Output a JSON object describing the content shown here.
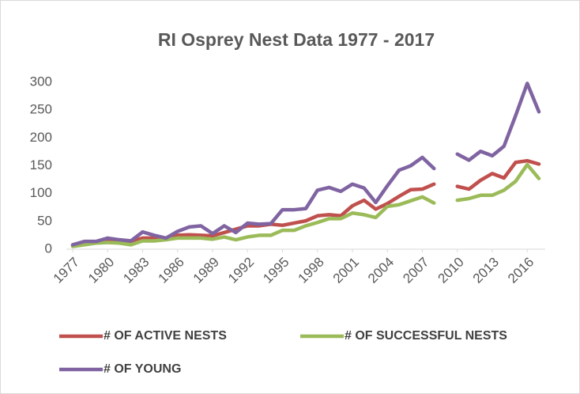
{
  "chart_data": {
    "type": "line",
    "title": "RI Osprey Nest Data 1977 - 2017",
    "x": [
      1977,
      1978,
      1979,
      1980,
      1981,
      1982,
      1983,
      1984,
      1985,
      1986,
      1987,
      1988,
      1989,
      1990,
      1991,
      1992,
      1993,
      1994,
      1995,
      1996,
      1997,
      1998,
      1999,
      2000,
      2001,
      2002,
      2003,
      2004,
      2005,
      2006,
      2007,
      2008,
      2009,
      2010,
      2011,
      2012,
      2013,
      2014,
      2015,
      2016,
      2017
    ],
    "series": [
      {
        "name": "# OF ACTIVE NESTS",
        "color": "#c0504d",
        "values": [
          7,
          12,
          13,
          17,
          15,
          14,
          20,
          20,
          20,
          25,
          26,
          25,
          24,
          30,
          36,
          42,
          42,
          45,
          43,
          47,
          51,
          60,
          62,
          60,
          78,
          88,
          72,
          82,
          95,
          107,
          108,
          117,
          null,
          113,
          108,
          124,
          136,
          128,
          156,
          159,
          153
        ]
      },
      {
        "name": "# OF SUCCESSFUL NESTS",
        "color": "#9bbb59",
        "values": [
          5,
          8,
          11,
          12,
          11,
          8,
          15,
          15,
          17,
          20,
          20,
          20,
          18,
          22,
          17,
          22,
          25,
          25,
          34,
          34,
          42,
          48,
          55,
          55,
          65,
          62,
          57,
          77,
          80,
          87,
          94,
          83,
          null,
          88,
          91,
          97,
          97,
          106,
          122,
          152,
          127
        ]
      },
      {
        "name": "# OF YOUNG",
        "color": "#8064a2",
        "values": [
          8,
          14,
          14,
          20,
          17,
          15,
          31,
          25,
          20,
          32,
          40,
          42,
          28,
          42,
          30,
          47,
          45,
          46,
          71,
          71,
          73,
          106,
          111,
          104,
          117,
          110,
          84,
          114,
          142,
          150,
          165,
          145,
          null,
          171,
          160,
          176,
          168,
          185,
          240,
          298,
          247
        ]
      }
    ],
    "xlim": [
      1977,
      2017
    ],
    "xticks": [
      1977,
      1980,
      1983,
      1986,
      1989,
      1992,
      1995,
      1998,
      2001,
      2004,
      2007,
      2010,
      2013,
      2016
    ],
    "ylim": [
      0,
      300
    ],
    "yticks": [
      0,
      50,
      100,
      150,
      200,
      250,
      300
    ],
    "grid": false,
    "legend": "bottom"
  }
}
